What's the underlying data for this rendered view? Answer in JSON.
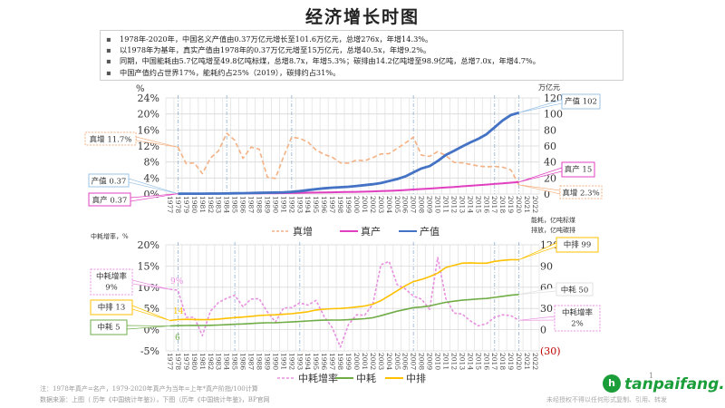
{
  "title": "经济增长时图",
  "notes": [
    "1978年-2020年，中国名义产值由0.37万亿元增长至101.6万亿元，总增276x，年增14.3%。",
    "以1978年为基年，真实产值由1978年的0.37万亿元增至15万亿元，总增40.5x，年增9.2%。",
    "同期，中国能耗由5.7亿吨增至49.8亿吨标煤，总增8.7x，年增5.3%；碳排由14.2亿吨增至98.9亿吨，总增7.0x，年增4.7%。",
    "中国产值约占世界17%，能耗约占25%（2019），碳排约占31%。"
  ],
  "bullet": "▪",
  "footnotes": {
    "note": "注：1978年真产=名产，1979-2020年真产为当年=上年*真产阶指/100计算",
    "source": "数据来源：上图（ 历年《中国统计年鉴》），下图（历年《中国统计年鉴》，BP官网"
  },
  "page_number": "1",
  "logo_text": "tanpaifang.com",
  "logo_glyph": "h",
  "rights_text": "未经授权不得以任何形式复制、引用、转发",
  "chart_data": [
    {
      "type": "line",
      "title": "",
      "x": [
        1977,
        1978,
        1979,
        1980,
        1981,
        1982,
        1983,
        1984,
        1985,
        1986,
        1987,
        1988,
        1989,
        1990,
        1991,
        1992,
        1993,
        1994,
        1995,
        1996,
        1997,
        1998,
        1999,
        2000,
        2001,
        2002,
        2003,
        2004,
        2005,
        2006,
        2007,
        2008,
        2009,
        2010,
        2011,
        2012,
        2013,
        2014,
        2015,
        2016,
        2017,
        2018,
        2019,
        2020,
        2021,
        2022
      ],
      "x_ticks": [
        "1977",
        "1978",
        "1979",
        "1980",
        "1981",
        "1982",
        "1983",
        "1984",
        "1985",
        "1986",
        "1987",
        "1988",
        "1989",
        "1990",
        "1991",
        "1992",
        "1993",
        "1994",
        "1995",
        "1996",
        "1997",
        "1998",
        "1999",
        "2000",
        "2001",
        "2002",
        "2003",
        "2004",
        "2005",
        "2006",
        "2007",
        "2008",
        "2009",
        "2010",
        "2011",
        "2012",
        "2013",
        "2014",
        "2015",
        "2016",
        "2017",
        "2018",
        "2019",
        "2020",
        "2021",
        "2022"
      ],
      "ylabel_left": "%",
      "ylabel_right": "万亿元",
      "ylim_left": [
        0,
        24
      ],
      "yticks_left": [
        "0%",
        "4%",
        "8%",
        "12%",
        "16%",
        "20%",
        "24%"
      ],
      "ylim_right": [
        0,
        120
      ],
      "yticks_right": [
        "0",
        "20",
        "40",
        "60",
        "80",
        "100",
        "120"
      ],
      "grid": true,
      "highlight_years": [
        1978,
        1984,
        1992,
        2007,
        2017,
        2020
      ],
      "legend_position": "bottom",
      "series": [
        {
          "name": "真增",
          "axis": "left",
          "style": "dashed",
          "color": "#f4b183",
          "values": [
            null,
            11.7,
            7.6,
            7.8,
            5.1,
            9.0,
            10.8,
            15.2,
            13.4,
            8.9,
            11.7,
            11.2,
            4.2,
            3.9,
            9.3,
            14.2,
            13.9,
            13.0,
            11.0,
            9.9,
            9.2,
            7.8,
            7.7,
            8.5,
            8.3,
            9.1,
            10.0,
            10.1,
            11.4,
            12.7,
            14.2,
            9.7,
            9.4,
            10.6,
            9.6,
            7.9,
            7.8,
            7.4,
            7.0,
            6.8,
            6.9,
            6.7,
            6.0,
            2.3,
            null,
            null
          ]
        },
        {
          "name": "真产",
          "axis": "right",
          "style": "solid",
          "color": "#e040c0",
          "values": [
            null,
            0.37,
            0.4,
            0.43,
            0.45,
            0.49,
            0.54,
            0.62,
            0.7,
            0.77,
            0.85,
            0.95,
            0.99,
            1.03,
            1.12,
            1.28,
            1.46,
            1.65,
            1.83,
            2.01,
            2.19,
            2.36,
            2.55,
            2.76,
            2.99,
            3.26,
            3.59,
            3.95,
            4.4,
            4.96,
            5.66,
            6.21,
            6.79,
            7.51,
            8.23,
            8.88,
            9.57,
            10.27,
            10.99,
            11.74,
            12.55,
            13.39,
            14.19,
            15.0,
            null,
            null
          ]
        },
        {
          "name": "产值",
          "axis": "right",
          "style": "solid",
          "color": "#4472c4",
          "values": [
            null,
            0.37,
            0.41,
            0.46,
            0.49,
            0.54,
            0.6,
            0.73,
            0.91,
            1.03,
            1.21,
            1.51,
            1.72,
            1.89,
            2.19,
            2.72,
            3.57,
            4.86,
            6.13,
            7.18,
            7.97,
            8.52,
            9.06,
            10.03,
            11.09,
            12.17,
            13.74,
            16.18,
            18.73,
            21.94,
            27.01,
            31.92,
            34.85,
            41.21,
            48.79,
            53.86,
            59.3,
            64.36,
            68.89,
            74.64,
            83.2,
            91.93,
            98.65,
            101.6,
            null,
            null
          ]
        }
      ],
      "annotations": [
        {
          "text": "真增 11.7%",
          "series": "真增",
          "year": 1978
        },
        {
          "text": "产值 0.37",
          "series": "产值",
          "year": 1978
        },
        {
          "text": "真产 0.37",
          "series": "真产",
          "year": 1978
        },
        {
          "text": "产值 102",
          "series": "产值",
          "year": 2020
        },
        {
          "text": "真产 15",
          "series": "真产",
          "year": 2020
        },
        {
          "text": "真增 2.3%",
          "series": "真增",
          "year": 2020
        }
      ]
    },
    {
      "type": "line",
      "title": "",
      "x": [
        1977,
        1978,
        1979,
        1980,
        1981,
        1982,
        1983,
        1984,
        1985,
        1986,
        1987,
        1988,
        1989,
        1990,
        1991,
        1992,
        1993,
        1994,
        1995,
        1996,
        1997,
        1998,
        1999,
        2000,
        2001,
        2002,
        2003,
        2004,
        2005,
        2006,
        2007,
        2008,
        2009,
        2010,
        2011,
        2012,
        2013,
        2014,
        2015,
        2016,
        2017,
        2018,
        2019,
        2020,
        2021,
        2022
      ],
      "x_ticks": [
        "1977",
        "1978",
        "1979",
        "1980",
        "1981",
        "1982",
        "1983",
        "1984",
        "1985",
        "1986",
        "1987",
        "1988",
        "1989",
        "1990",
        "1991",
        "1992",
        "1993",
        "1994",
        "1995",
        "1996",
        "1997",
        "1998",
        "1999",
        "2000",
        "2001",
        "2002",
        "2003",
        "2004",
        "2005",
        "2006",
        "2007",
        "2008",
        "2009",
        "2010",
        "2011",
        "2012",
        "2013",
        "2014",
        "2015",
        "2016",
        "2017",
        "2018",
        "2019",
        "2020",
        "2021",
        "2022"
      ],
      "ylabel_left": "中耗增率，%",
      "ylabel_right": "能耗，亿吨标煤\n排放，亿吨碳排",
      "ylim_left": [
        -5,
        20
      ],
      "yticks_left": [
        "-5%",
        "0%",
        "5%",
        "10%",
        "15%",
        "20%"
      ],
      "ylim_right": [
        -30,
        120
      ],
      "yticks_right": [
        "(30)",
        "0",
        "30",
        "60",
        "90",
        "120"
      ],
      "grid": true,
      "highlight_years": [
        1978,
        1985,
        1993,
        2007,
        2017,
        2020
      ],
      "legend_position": "bottom",
      "series": [
        {
          "name": "中耗增率",
          "axis": "left",
          "style": "dashed",
          "color": "#e890e0",
          "values": [
            9.5,
            9.3,
            2.9,
            2.9,
            -1.4,
            4.4,
            6.4,
            7.4,
            8.1,
            5.4,
            7.2,
            7.3,
            4.2,
            1.8,
            5.1,
            5.2,
            6.3,
            5.8,
            6.9,
            3.1,
            0.5,
            -4.1,
            1.2,
            3.5,
            3.4,
            6.0,
            15.3,
            16.1,
            10.6,
            9.6,
            7.9,
            7.2,
            4.8,
            17.0,
            7.3,
            3.9,
            3.7,
            2.1,
            0.9,
            1.4,
            2.9,
            3.5,
            3.3,
            2.2,
            null,
            null
          ]
        },
        {
          "name": "中耗",
          "axis": "right",
          "style": "solid",
          "color": "#70ad47",
          "values": [
            5.2,
            5.7,
            5.9,
            6.0,
            5.9,
            6.2,
            6.6,
            7.1,
            7.7,
            8.1,
            8.7,
            9.3,
            9.7,
            9.9,
            10.4,
            10.9,
            11.6,
            12.3,
            13.1,
            13.5,
            13.6,
            13.6,
            14.1,
            14.7,
            15.5,
            16.9,
            19.7,
            23.0,
            26.1,
            28.6,
            31.1,
            32.1,
            33.6,
            36.1,
            38.7,
            40.2,
            41.7,
            42.6,
            43.4,
            44.1,
            45.6,
            47.2,
            48.7,
            49.8,
            null,
            null
          ]
        },
        {
          "name": "中排",
          "axis": "right",
          "style": "solid",
          "color": "#ffc000",
          "values": [
            13.0,
            14.2,
            14.6,
            14.4,
            14.1,
            14.4,
            15.0,
            16.0,
            17.0,
            17.8,
            18.9,
            20.0,
            20.6,
            21.0,
            21.8,
            22.6,
            24.0,
            25.3,
            27.8,
            29.0,
            29.6,
            30.0,
            30.9,
            32.1,
            33.5,
            36.0,
            41.0,
            48.0,
            55.0,
            62.0,
            68.0,
            71.0,
            75.0,
            80.0,
            88.0,
            91.0,
            94.0,
            94.5,
            94.0,
            94.0,
            96.5,
            98.0,
            99.0,
            98.9,
            null,
            null
          ]
        }
      ],
      "annotations": [
        {
          "text": "中耗增率\n9%",
          "series": "中耗增率",
          "year": 1977
        },
        {
          "text": "中排 13",
          "series": "中排",
          "year": 1977
        },
        {
          "text": "中耗 5",
          "series": "中耗",
          "year": 1977
        },
        {
          "text": "中排 99",
          "series": "中排",
          "year": 2020
        },
        {
          "text": "中耗 50",
          "series": "中耗",
          "year": 2020
        },
        {
          "text": "中耗增率\n2%",
          "series": "中耗增率",
          "year": 2020
        },
        {
          "text": "9%",
          "series": "中耗增率",
          "year": 1978
        },
        {
          "text": "14",
          "series": "中排",
          "year": 1978
        },
        {
          "text": "6",
          "series": "中耗",
          "year": 1978
        }
      ]
    }
  ]
}
